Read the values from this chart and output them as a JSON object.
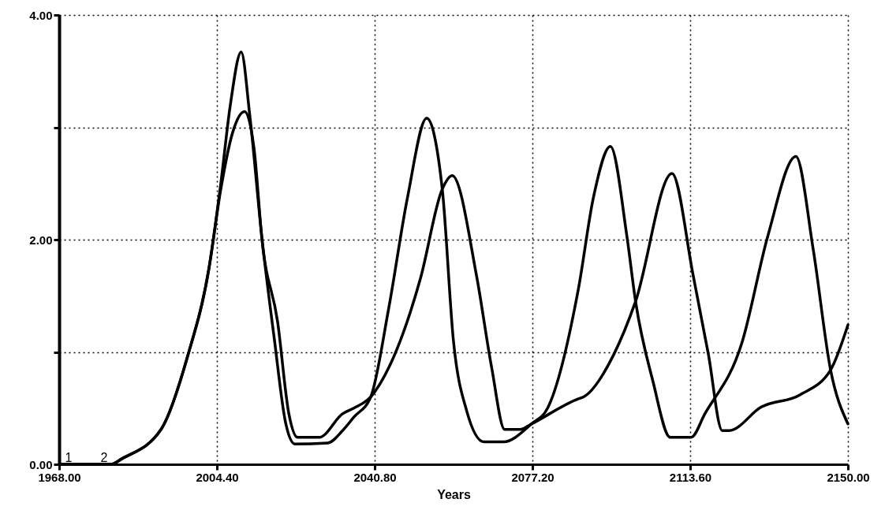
{
  "chart_data": {
    "type": "line",
    "xlabel": "Years",
    "xlim": [
      1968,
      2150
    ],
    "ylim": [
      0,
      4
    ],
    "xticks": [
      {
        "value": 1968,
        "label": "1968.00"
      },
      {
        "value": 2004.4,
        "label": "2004.40"
      },
      {
        "value": 2040.8,
        "label": "2040.80"
      },
      {
        "value": 2077.2,
        "label": "2077.20"
      },
      {
        "value": 2113.6,
        "label": "2113.60"
      },
      {
        "value": 2150,
        "label": "2150.00"
      }
    ],
    "yticks": [
      {
        "value": 0,
        "label": "0.00"
      },
      {
        "value": 1,
        "label": null
      },
      {
        "value": 2,
        "label": "2.00"
      },
      {
        "value": 3,
        "label": null
      },
      {
        "value": 4,
        "label": "4.00"
      }
    ],
    "grid": true,
    "marker": "none",
    "line_style": "solid",
    "series": [
      {
        "name": "1",
        "color": "#000000",
        "x": [
          1968,
          1980,
          1982.5,
          1991.5,
          1997.7,
          2002.5,
          2005.3,
          2007.5,
          2010,
          2012,
          2014.8,
          2017.6,
          2020.3,
          2022.4,
          2030,
          2033.4,
          2036,
          2039.9,
          2044,
          2048.4,
          2052.8,
          2056.4,
          2059,
          2062,
          2066,
          2070.5,
          2077,
          2080.7,
          2087.8,
          2091.3,
          2095.2,
          2099,
          2101,
          2105,
          2109,
          2113.8,
          2117,
          2125.6,
          2131.5,
          2138,
          2142,
          2146,
          2150
        ],
        "values": [
          0,
          0,
          0.05,
          0.31,
          0.97,
          1.73,
          2.5,
          3.2,
          3.67,
          3.1,
          2.01,
          1.13,
          0.36,
          0.18,
          0.19,
          0.3,
          0.42,
          0.6,
          1.38,
          2.38,
          3.08,
          2.45,
          1.09,
          0.48,
          0.2,
          0.2,
          0.36,
          0.5,
          1.56,
          2.38,
          2.83,
          2.03,
          1.45,
          0.74,
          0.24,
          0.24,
          0.45,
          1.09,
          2.03,
          2.74,
          1.91,
          0.84,
          0.36
        ]
      },
      {
        "name": "2",
        "color": "#000000",
        "x": [
          1968,
          1980,
          1982.5,
          1991.5,
          1997.7,
          2002.5,
          2005.3,
          2008,
          2010.8,
          2013,
          2014.8,
          2018.4,
          2021,
          2023,
          2028,
          2033.4,
          2036,
          2039.9,
          2044.3,
          2051.4,
          2056.4,
          2058.7,
          2064.3,
          2067.8,
          2070.8,
          2074.4,
          2077,
          2087.6,
          2089,
          2096,
          2101,
          2109.4,
          2114.3,
          2117.8,
          2121,
          2122.6,
          2130,
          2139,
          2146,
          2150
        ],
        "values": [
          0,
          0,
          0.05,
          0.31,
          0.97,
          1.73,
          2.45,
          2.95,
          3.14,
          2.8,
          2.0,
          1.27,
          0.45,
          0.24,
          0.24,
          0.45,
          0.5,
          0.6,
          0.88,
          1.66,
          2.45,
          2.57,
          1.68,
          0.86,
          0.31,
          0.31,
          0.36,
          0.58,
          0.6,
          0.98,
          1.45,
          2.59,
          1.68,
          0.98,
          0.3,
          0.3,
          0.51,
          0.62,
          0.84,
          1.24
        ]
      }
    ]
  }
}
